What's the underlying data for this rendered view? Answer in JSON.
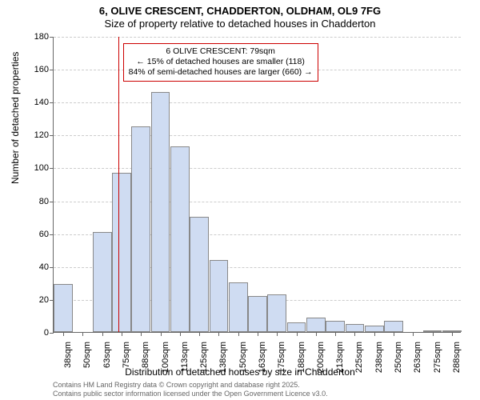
{
  "title": {
    "line1": "6, OLIVE CRESCENT, CHADDERTON, OLDHAM, OL9 7FG",
    "line2": "Size of property relative to detached houses in Chadderton"
  },
  "chart": {
    "type": "histogram",
    "bar_fill": "#cfdcf2",
    "bar_stroke": "#888888",
    "grid_color": "#cccccc",
    "axis_color": "#666666",
    "background": "#ffffff",
    "ylim": [
      0,
      180
    ],
    "yticks": [
      0,
      20,
      40,
      60,
      80,
      100,
      120,
      140,
      160,
      180
    ],
    "xtick_labels": [
      "38sqm",
      "50sqm",
      "63sqm",
      "75sqm",
      "88sqm",
      "100sqm",
      "113sqm",
      "125sqm",
      "138sqm",
      "150sqm",
      "163sqm",
      "175sqm",
      "188sqm",
      "200sqm",
      "213sqm",
      "225sqm",
      "238sqm",
      "250sqm",
      "263sqm",
      "275sqm",
      "288sqm"
    ],
    "values": [
      29,
      0,
      61,
      97,
      125,
      146,
      113,
      70,
      44,
      30,
      22,
      23,
      6,
      9,
      7,
      5,
      4,
      7,
      0,
      1,
      1
    ],
    "marker": {
      "index_after_bar": 3,
      "color": "#cc0000"
    },
    "callout": {
      "border_color": "#cc0000",
      "line1": "6 OLIVE CRESCENT: 79sqm",
      "line2": "← 15% of detached houses are smaller (118)",
      "line3": "84% of semi-detached houses are larger (660) →"
    },
    "yaxis_label": "Number of detached properties",
    "xaxis_label": "Distribution of detached houses by size in Chadderton",
    "tick_fontsize": 11,
    "label_fontsize": 12,
    "title_fontsize": 13
  },
  "footer": {
    "line1": "Contains HM Land Registry data © Crown copyright and database right 2025.",
    "line2": "Contains public sector information licensed under the Open Government Licence v3.0."
  }
}
